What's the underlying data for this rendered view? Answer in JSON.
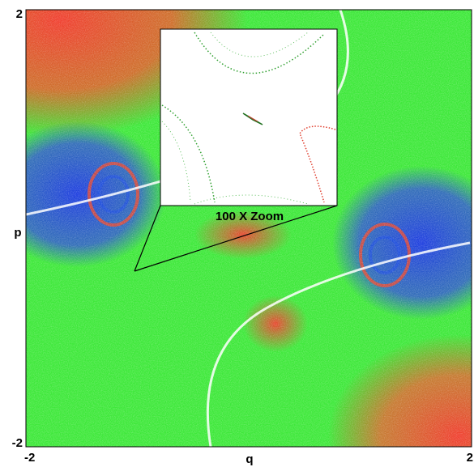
{
  "chart_data": {
    "type": "phase-portrait",
    "xlabel": "q",
    "ylabel": "p",
    "xlim": [
      -2,
      2
    ],
    "ylim": [
      -2,
      2
    ],
    "xticks": [
      -2,
      2
    ],
    "yticks": [
      -2,
      2
    ],
    "annotation": "100 X Zoom"
  }
}
